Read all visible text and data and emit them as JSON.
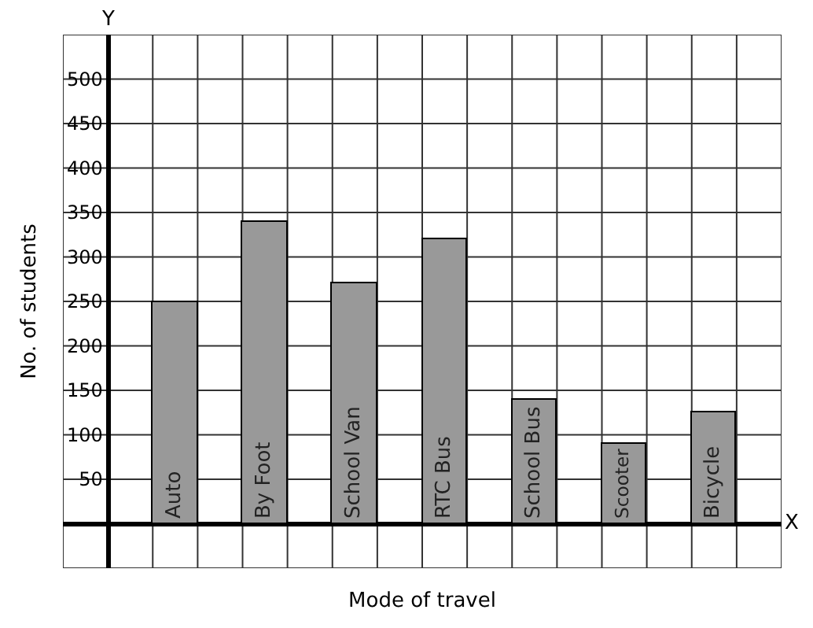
{
  "chart_data": {
    "type": "bar",
    "xlabel": "Mode of travel",
    "ylabel": "No. of students",
    "categories": [
      "Auto",
      "By Foot",
      "School Van",
      "RTC Bus",
      "School Bus",
      "Scooter",
      "Bicycle"
    ],
    "values": [
      250,
      340,
      270,
      320,
      140,
      90,
      125
    ],
    "color": "#999999",
    "ylim": [
      -50,
      550
    ],
    "yticks": [
      50,
      100,
      150,
      200,
      250,
      300,
      350,
      400,
      450,
      500
    ],
    "grid": true,
    "tick_labels": "y",
    "legend": false,
    "annotations": [
      "X",
      "Y"
    ]
  }
}
